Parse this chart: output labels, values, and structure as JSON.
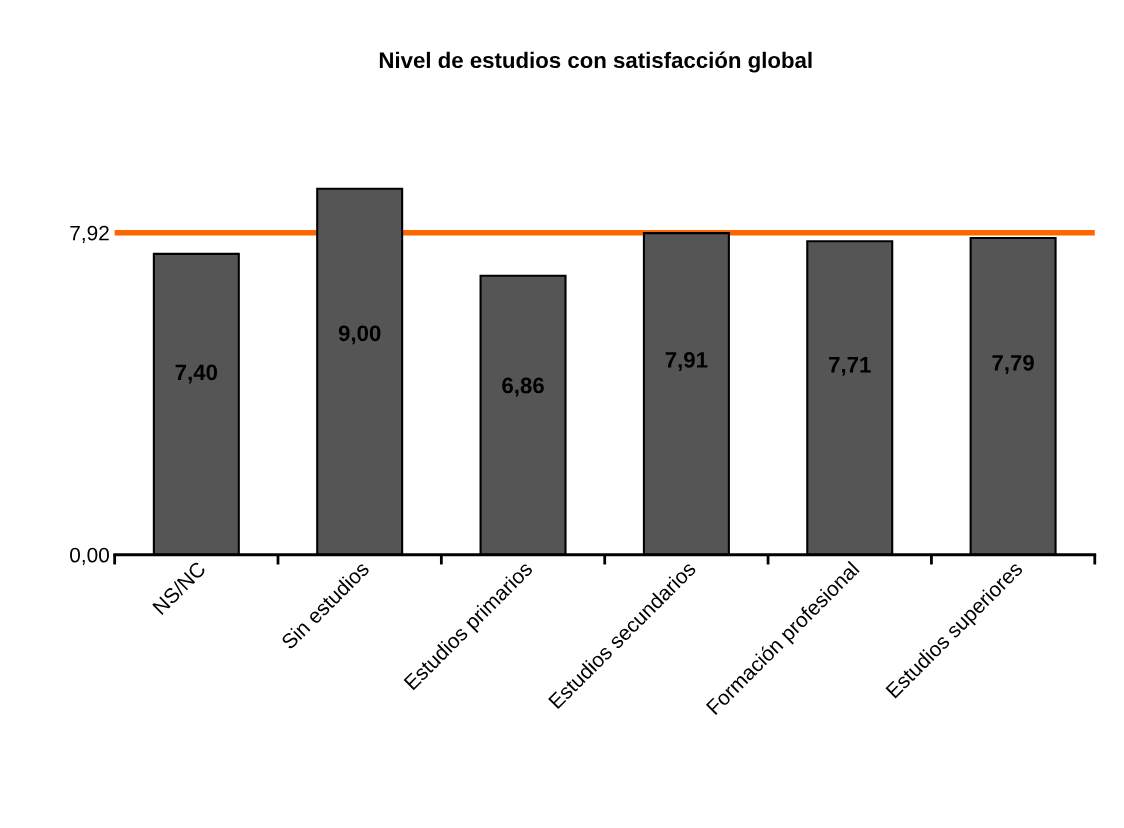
{
  "chart_data": {
    "type": "bar",
    "title": "Nivel de estudios con satisfacción global",
    "categories": [
      "NS/NC",
      "Sin estudios",
      "Estudios primarios",
      "Estudios secundarios",
      "Formación profesional",
      "Estudios superiores"
    ],
    "values": [
      7.4,
      9.0,
      6.86,
      7.91,
      7.71,
      7.79
    ],
    "value_labels": [
      "7,40",
      "9,00",
      "6,86",
      "7,91",
      "7,71",
      "7,79"
    ],
    "color": "#555555",
    "ylim": [
      0,
      9
    ],
    "yticks": [
      {
        "value": 0,
        "label": "0,00"
      },
      {
        "value": 7.92,
        "label": "7,92"
      }
    ],
    "ref_lines": [
      {
        "axis": "y",
        "value": 7.92,
        "color": "#ff6600"
      }
    ],
    "grid": false
  }
}
